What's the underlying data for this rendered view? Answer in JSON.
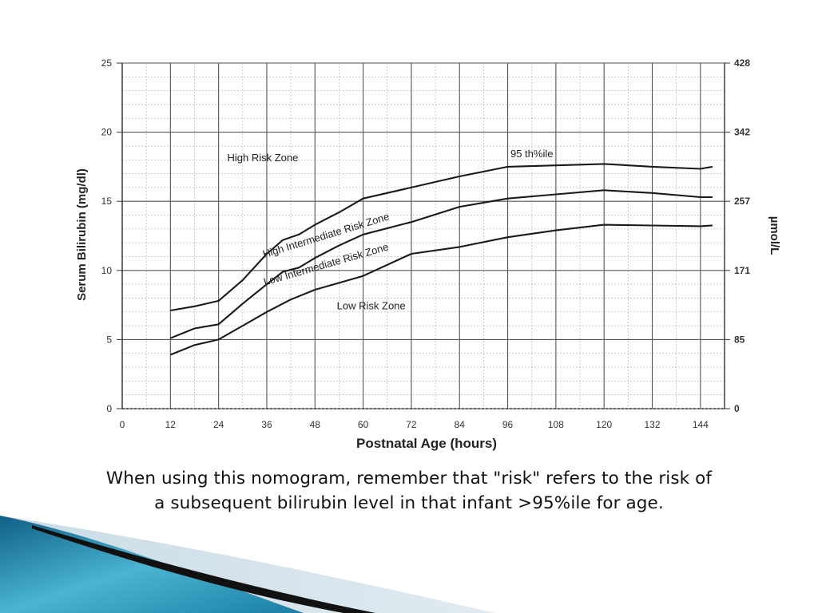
{
  "slide": {
    "caption_lines": [
      "When using this nomogram, remember that \"risk\" refers to the risk of",
      "a subsequent bilirubin level in that infant >95%ile for age."
    ]
  },
  "chart_data": {
    "type": "line",
    "title": "",
    "xlabel": "Postnatal Age (hours)",
    "ylabel": "Serum Bilirubin (mg/dl)",
    "y2label": "µmol/L",
    "xlim": [
      0,
      150
    ],
    "ylim": [
      0,
      25
    ],
    "x_ticks": [
      0,
      12,
      24,
      36,
      48,
      60,
      72,
      84,
      96,
      108,
      120,
      132,
      144
    ],
    "y_ticks": [
      0,
      5,
      10,
      15,
      20,
      25
    ],
    "y2_ticks": [
      {
        "value": 0,
        "label": "0"
      },
      {
        "value": 5,
        "label": "85"
      },
      {
        "value": 10,
        "label": "171"
      },
      {
        "value": 15,
        "label": "257"
      },
      {
        "value": 20,
        "label": "342"
      },
      {
        "value": 25,
        "label": "428"
      }
    ],
    "grid": true,
    "series": [
      {
        "name": "95 th%ile",
        "x": [
          12,
          18,
          24,
          30,
          36,
          40,
          44,
          48,
          54,
          60,
          72,
          84,
          96,
          108,
          120,
          132,
          144,
          147
        ],
        "y": [
          7.1,
          7.4,
          7.8,
          9.3,
          11.2,
          12.2,
          12.6,
          13.3,
          14.2,
          15.2,
          16.0,
          16.8,
          17.5,
          17.6,
          17.7,
          17.5,
          17.35,
          17.5
        ]
      },
      {
        "name": "",
        "x": [
          12,
          18,
          24,
          30,
          36,
          40,
          44,
          48,
          54,
          60,
          72,
          84,
          96,
          108,
          120,
          132,
          144,
          147
        ],
        "y": [
          5.1,
          5.8,
          6.1,
          7.6,
          9.0,
          9.9,
          10.2,
          10.9,
          11.8,
          12.6,
          13.5,
          14.6,
          15.2,
          15.5,
          15.8,
          15.6,
          15.3,
          15.3
        ]
      },
      {
        "name": "",
        "x": [
          12,
          18,
          24,
          30,
          36,
          42,
          48,
          60,
          72,
          84,
          96,
          108,
          120,
          132,
          144,
          147
        ],
        "y": [
          3.9,
          4.6,
          5.0,
          6.0,
          7.0,
          7.9,
          8.6,
          9.6,
          11.2,
          11.7,
          12.4,
          12.9,
          13.3,
          13.25,
          13.2,
          13.25
        ]
      }
    ],
    "annotations": [
      {
        "text": "High Risk Zone",
        "x": 35,
        "y": 17.9,
        "rotate": 0
      },
      {
        "text": "High Intermediate Risk Zone",
        "x": 51,
        "y": 12.3,
        "rotate": -17
      },
      {
        "text": "Low Intermediate Risk Zone",
        "x": 51,
        "y": 10.2,
        "rotate": -16
      },
      {
        "text": "Low Risk Zone",
        "x": 62,
        "y": 7.2,
        "rotate": 0
      },
      {
        "text": "95 th%ile",
        "x": 102,
        "y": 18.2,
        "rotate": 0
      }
    ]
  },
  "colors": {
    "line": "#1a1a1a",
    "major_grid": "#555555",
    "minor_grid": "#bdbdbd",
    "footer_teal": "#2a8fb0",
    "footer_light": "#dbe7ee",
    "footer_black": "#111111"
  }
}
